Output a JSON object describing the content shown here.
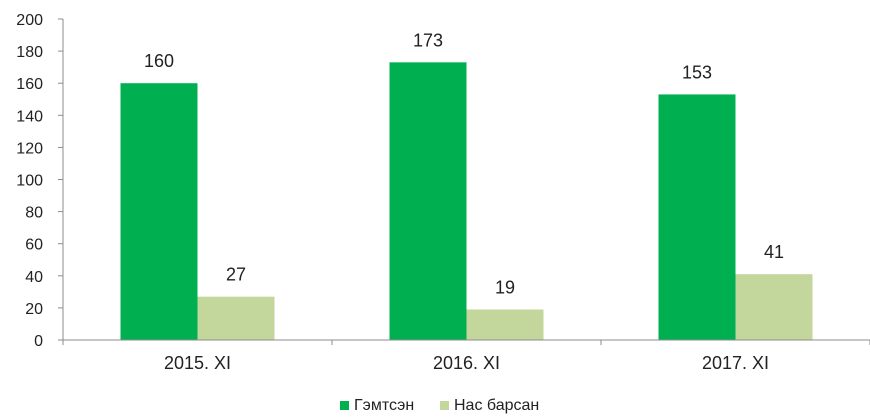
{
  "chart_data": {
    "type": "bar",
    "categories": [
      "2015. XI",
      "2016. XI",
      "2017. XI"
    ],
    "series": [
      {
        "name": "Гэмтсэн",
        "values": [
          160,
          173,
          153
        ],
        "color": "#00b050"
      },
      {
        "name": "Нас барсан",
        "values": [
          27,
          19,
          41
        ],
        "color": "#c3d69b"
      }
    ],
    "yticks": [
      "0",
      "20",
      "40",
      "60",
      "80",
      "100",
      "120",
      "140",
      "160",
      "180",
      "200"
    ],
    "ylim": [
      0,
      200
    ],
    "grid": false,
    "legend_position": "bottom",
    "title": "",
    "xlabel": "",
    "ylabel": ""
  }
}
